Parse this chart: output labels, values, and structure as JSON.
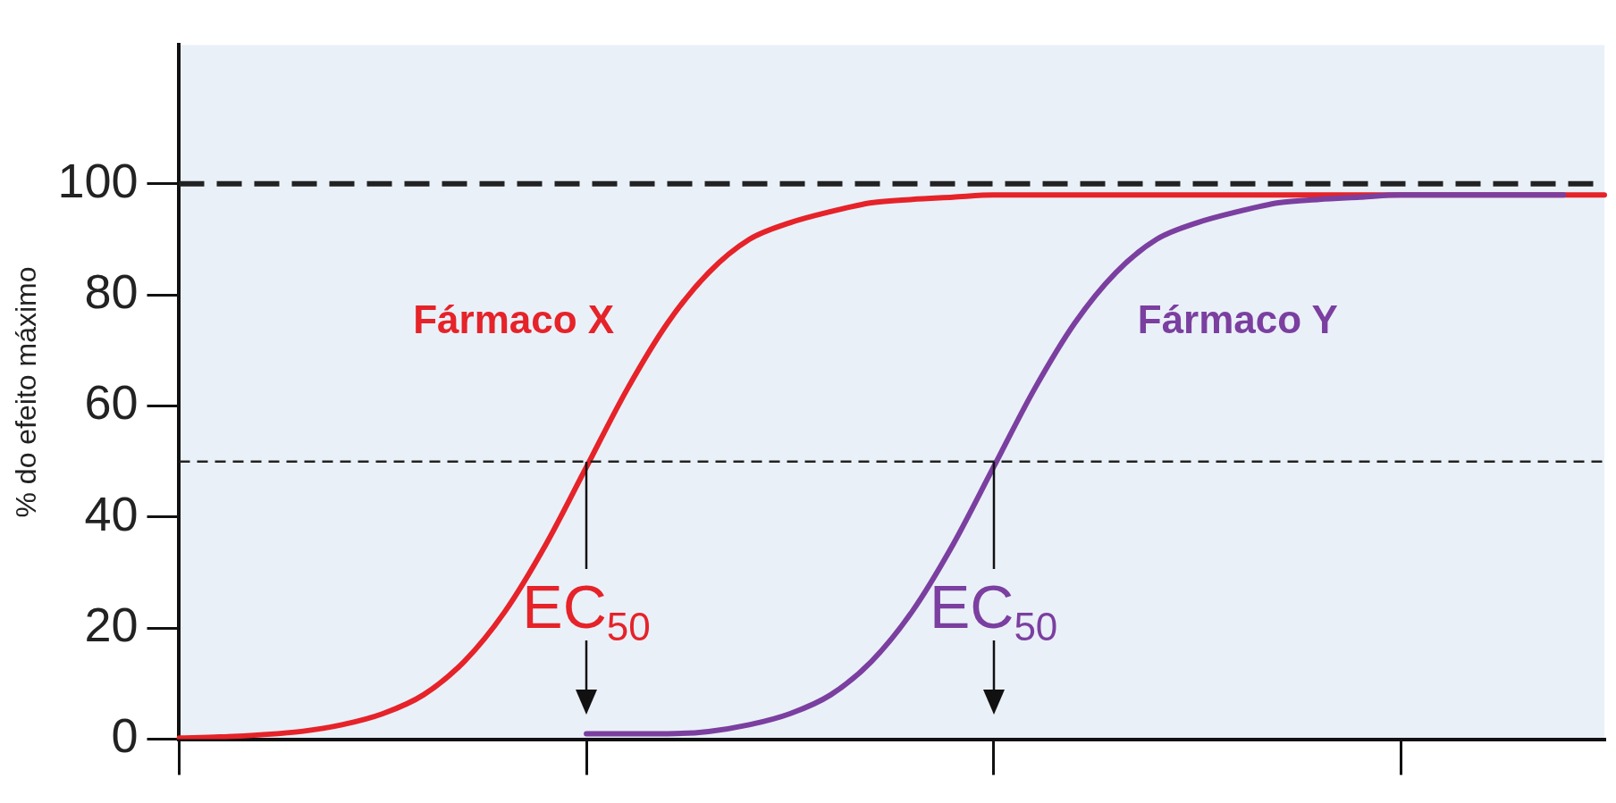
{
  "chart_data": {
    "type": "line",
    "ylabel": "% do efeito máximo",
    "categories": [
      null,
      null,
      null,
      null,
      null,
      null,
      null,
      null,
      null,
      null,
      null,
      null,
      null,
      null,
      null,
      null,
      null,
      null,
      null,
      null,
      null,
      null,
      null,
      null,
      null,
      null,
      null,
      null,
      null,
      null,
      null,
      null,
      null,
      null,
      null,
      null
    ],
    "series": [
      {
        "name": "Fármaco X",
        "color": "#e52329",
        "values": [
          0.2,
          0.4,
          0.8,
          1.4,
          2.6,
          4.6,
          8,
          14,
          23,
          35,
          49,
          63,
          75,
          84,
          90,
          93,
          95,
          96.6,
          97.2,
          97.6,
          98,
          98,
          98,
          98,
          98,
          98,
          98,
          98,
          98,
          98,
          98,
          98,
          98,
          98,
          98,
          98
        ]
      },
      {
        "name": "Fármaco Y",
        "color": "#7b3fa0",
        "values": [
          null,
          null,
          null,
          null,
          null,
          null,
          null,
          null,
          null,
          null,
          1,
          1,
          1,
          1.4,
          2.6,
          4.6,
          8,
          14,
          23,
          35,
          49,
          63,
          75,
          84,
          90,
          93,
          95,
          96.6,
          97.2,
          97.6,
          98,
          98,
          98,
          98,
          98,
          null
        ]
      }
    ],
    "ylim": [
      0,
      125
    ],
    "yticks": [
      0,
      20,
      40,
      60,
      80,
      100
    ],
    "grid": false,
    "legend": false,
    "line_style": "solid",
    "marker": "none",
    "ref_lines": [
      {
        "axis": "y",
        "value": 100,
        "color": "#222222",
        "line_style": "dashed"
      },
      {
        "axis": "y",
        "value": 50,
        "color": "#222222",
        "line_style": "dashed"
      }
    ],
    "annotations": [
      {
        "text": "EC$_{50}$",
        "y": 50
      },
      {
        "text": "EC$_{50}$",
        "y": 50
      }
    ]
  }
}
